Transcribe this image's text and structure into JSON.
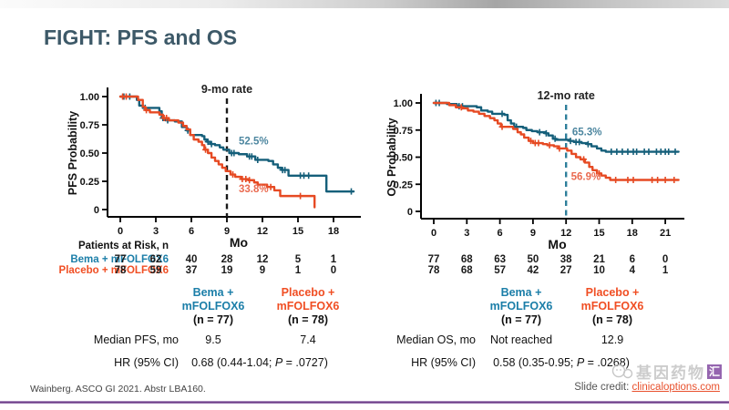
{
  "slide": {
    "title": "FIGHT: PFS and OS",
    "footer_ref": "Wainberg. ASCO GI 2021. Abstr LBA160.",
    "credit_label": "Slide credit: ",
    "credit_link": "clinicaloptions.com",
    "watermark_text": "基因药物",
    "watermark_badge": "汇"
  },
  "colors": {
    "teal_curve": "#155f7a",
    "orange_curve": "#e64a23",
    "teal_text": "#1b7ea8",
    "orange_text": "#f04e23",
    "teal_label": "#4e87a0",
    "orange_label": "#ea6a50",
    "title": "#3d5968",
    "purple_line": "#5c2a7a"
  },
  "risk": {
    "header": "Patients at Risk, n",
    "row_labels": [
      "Bema + mFOLFOX6",
      "Placebo + mFOLFOX6"
    ],
    "left_values": [
      [
        77,
        62,
        40,
        28,
        12,
        5,
        1
      ],
      [
        78,
        59,
        37,
        19,
        9,
        1,
        0
      ]
    ],
    "right_values": [
      [
        77,
        68,
        63,
        50,
        38,
        21,
        6,
        0
      ],
      [
        78,
        68,
        57,
        42,
        27,
        10,
        4,
        1
      ]
    ]
  },
  "summary_left": {
    "head1": [
      "Bema +",
      "mFOLFOX6",
      "(n = 77)"
    ],
    "head2": [
      "Placebo +",
      "mFOLFOX6",
      "(n = 78)"
    ],
    "row1_label": "Median PFS, mo",
    "row1_v1": "9.5",
    "row1_v2": "7.4",
    "row2_label": "HR (95% CI)",
    "hr_pre": "0.68 (0.44-1.04; ",
    "hr_p": "P",
    "hr_post": " = .0727)"
  },
  "summary_right": {
    "head1": [
      "Bema +",
      "mFOLFOX6",
      "(n = 77)"
    ],
    "head2": [
      "Placebo +",
      "mFOLFOX6",
      "(n = 78)"
    ],
    "row1_label": "Median OS, mo",
    "row1_v1": "Not reached",
    "row1_v2": "12.9",
    "row2_label": "HR (95% CI)",
    "hr_pre": "0.58 (0.35-0.95; ",
    "hr_p": "P",
    "hr_post": " = .0268)"
  },
  "chart_data": [
    {
      "id": "pfs",
      "type": "line",
      "subtype": "kaplan-meier-step",
      "title": "",
      "ylabel": "PFS Probability",
      "xlabel": "Mo",
      "xticks": [
        0,
        3,
        6,
        9,
        12,
        15,
        18
      ],
      "yticks": [
        {
          "v": 1.0,
          "label": "1.00"
        },
        {
          "v": 0.75,
          "label": "0.75"
        },
        {
          "v": 0.5,
          "label": "0.50"
        },
        {
          "v": 0.25,
          "label": "0.25"
        },
        {
          "v": 0,
          "label": "0"
        }
      ],
      "xlim": [
        0,
        20
      ],
      "ylim": [
        0,
        1
      ],
      "grid": false,
      "vline": {
        "x": 9,
        "label": "9-mo rate",
        "color": "#1a1a1a"
      },
      "series": [
        {
          "name": "Bema + mFOLFOX6",
          "color": "#155f7a",
          "label_color": "#4e87a0",
          "rate_label": {
            "text": "52.5%",
            "x": 10.0,
            "y": 0.575
          },
          "points": [
            [
              0,
              1.0
            ],
            [
              1.4,
              0.97
            ],
            [
              1.6,
              0.92
            ],
            [
              1.9,
              0.9
            ],
            [
              3.3,
              0.87
            ],
            [
              3.5,
              0.81
            ],
            [
              3.8,
              0.79
            ],
            [
              4.6,
              0.78
            ],
            [
              5.2,
              0.73
            ],
            [
              5.6,
              0.7
            ],
            [
              5.9,
              0.66
            ],
            [
              6.9,
              0.65
            ],
            [
              7.1,
              0.62
            ],
            [
              7.3,
              0.6
            ],
            [
              7.6,
              0.58
            ],
            [
              8.0,
              0.57
            ],
            [
              8.4,
              0.55
            ],
            [
              8.7,
              0.53
            ],
            [
              9.2,
              0.5
            ],
            [
              10.0,
              0.49
            ],
            [
              10.7,
              0.47
            ],
            [
              11.4,
              0.44
            ],
            [
              12.5,
              0.43
            ],
            [
              12.9,
              0.4
            ],
            [
              13.3,
              0.37
            ],
            [
              13.6,
              0.35
            ],
            [
              14.2,
              0.3
            ],
            [
              17.4,
              0.16
            ],
            [
              19.7,
              0.16
            ]
          ],
          "censor_x": [
            0.3,
            0.8,
            2.1,
            3.6,
            4.0,
            5.7,
            7.4,
            7.7,
            9.4,
            9.6,
            10.9,
            11.1,
            11.6,
            13.7,
            13.9,
            15.2,
            15.5,
            15.9,
            19.5
          ]
        },
        {
          "name": "Placebo + mFOLFOX6",
          "color": "#e64a23",
          "label_color": "#ea6a50",
          "rate_label": {
            "text": "33.8%",
            "x": 10.0,
            "y": 0.155
          },
          "points": [
            [
              0,
              1.0
            ],
            [
              1.5,
              0.97
            ],
            [
              1.9,
              0.91
            ],
            [
              2.1,
              0.88
            ],
            [
              2.5,
              0.86
            ],
            [
              3.3,
              0.84
            ],
            [
              3.6,
              0.81
            ],
            [
              4.1,
              0.79
            ],
            [
              4.9,
              0.77
            ],
            [
              5.3,
              0.74
            ],
            [
              5.6,
              0.71
            ],
            [
              5.9,
              0.66
            ],
            [
              6.2,
              0.62
            ],
            [
              6.6,
              0.6
            ],
            [
              6.9,
              0.57
            ],
            [
              7.1,
              0.53
            ],
            [
              7.4,
              0.5
            ],
            [
              7.7,
              0.46
            ],
            [
              8.0,
              0.43
            ],
            [
              8.3,
              0.4
            ],
            [
              8.6,
              0.37
            ],
            [
              8.9,
              0.34
            ],
            [
              9.3,
              0.31
            ],
            [
              9.7,
              0.29
            ],
            [
              10.2,
              0.27
            ],
            [
              10.8,
              0.26
            ],
            [
              11.3,
              0.24
            ],
            [
              11.6,
              0.22
            ],
            [
              12.4,
              0.2
            ],
            [
              13.0,
              0.17
            ],
            [
              13.5,
              0.12
            ],
            [
              16.4,
              0.02
            ]
          ],
          "censor_x": [
            0.2,
            0.5,
            2.2,
            3.7,
            3.9,
            7.2,
            9.5,
            10.3,
            10.6,
            10.9,
            12.7,
            15.2
          ]
        }
      ]
    },
    {
      "id": "os",
      "type": "line",
      "subtype": "kaplan-meier-step",
      "title": "",
      "ylabel": "OS Probability",
      "xlabel": "Mo",
      "xticks": [
        0,
        3,
        6,
        9,
        12,
        15,
        18,
        21
      ],
      "yticks": [
        {
          "v": 1.0,
          "label": "1.00"
        },
        {
          "v": 0.75,
          "label": "0.75"
        },
        {
          "v": 0.5,
          "label": "0.50"
        },
        {
          "v": 0.25,
          "label": "0.25"
        },
        {
          "v": 0,
          "label": "0"
        }
      ],
      "xlim": [
        0,
        22.4
      ],
      "ylim": [
        0,
        1
      ],
      "grid": false,
      "vline": {
        "x": 12,
        "label": "12-mo rate",
        "color": "#2f7f9b"
      },
      "series": [
        {
          "name": "Bema + mFOLFOX6",
          "color": "#155f7a",
          "label_color": "#4e87a0",
          "rate_label": {
            "text": "65.3%",
            "x": 12.55,
            "y": 0.7
          },
          "points": [
            [
              0,
              1.0
            ],
            [
              1.2,
              0.99
            ],
            [
              2.1,
              0.97
            ],
            [
              3.9,
              0.96
            ],
            [
              4.3,
              0.93
            ],
            [
              4.9,
              0.92
            ],
            [
              5.3,
              0.9
            ],
            [
              6.4,
              0.89
            ],
            [
              6.7,
              0.84
            ],
            [
              7.0,
              0.81
            ],
            [
              7.3,
              0.78
            ],
            [
              8.1,
              0.77
            ],
            [
              8.4,
              0.75
            ],
            [
              8.9,
              0.74
            ],
            [
              9.4,
              0.73
            ],
            [
              10.1,
              0.72
            ],
            [
              10.4,
              0.7
            ],
            [
              10.8,
              0.67
            ],
            [
              11.1,
              0.66
            ],
            [
              12.3,
              0.65
            ],
            [
              12.7,
              0.64
            ],
            [
              13.4,
              0.63
            ],
            [
              13.9,
              0.62
            ],
            [
              14.3,
              0.6
            ],
            [
              14.8,
              0.58
            ],
            [
              15.2,
              0.56
            ],
            [
              15.6,
              0.55
            ],
            [
              22.2,
              0.55
            ]
          ],
          "censor_x": [
            0.2,
            0.5,
            2.3,
            2.6,
            6.2,
            7.5,
            9.6,
            10.2,
            11.0,
            12.4,
            12.9,
            13.2,
            14.0,
            16.1,
            16.6,
            17.1,
            17.6,
            18.1,
            18.4,
            19.1,
            19.5,
            20.2,
            20.6,
            21.0,
            21.3,
            21.9
          ]
        },
        {
          "name": "Placebo + mFOLFOX6",
          "color": "#e64a23",
          "label_color": "#ea6a50",
          "rate_label": {
            "text": "56.9%",
            "x": 12.45,
            "y": 0.29
          },
          "points": [
            [
              0,
              1.0
            ],
            [
              1.4,
              0.98
            ],
            [
              2.0,
              0.96
            ],
            [
              2.6,
              0.95
            ],
            [
              3.1,
              0.93
            ],
            [
              3.6,
              0.92
            ],
            [
              4.1,
              0.9
            ],
            [
              4.6,
              0.88
            ],
            [
              5.1,
              0.86
            ],
            [
              5.5,
              0.84
            ],
            [
              5.8,
              0.81
            ],
            [
              6.1,
              0.78
            ],
            [
              7.2,
              0.76
            ],
            [
              7.6,
              0.73
            ],
            [
              7.9,
              0.71
            ],
            [
              8.2,
              0.68
            ],
            [
              8.6,
              0.65
            ],
            [
              9.0,
              0.63
            ],
            [
              9.9,
              0.62
            ],
            [
              10.3,
              0.61
            ],
            [
              10.9,
              0.6
            ],
            [
              11.3,
              0.58
            ],
            [
              12.1,
              0.56
            ],
            [
              12.5,
              0.53
            ],
            [
              12.9,
              0.5
            ],
            [
              13.3,
              0.48
            ],
            [
              13.7,
              0.45
            ],
            [
              14.1,
              0.41
            ],
            [
              14.4,
              0.38
            ],
            [
              14.8,
              0.35
            ],
            [
              15.2,
              0.33
            ],
            [
              15.6,
              0.31
            ],
            [
              16.0,
              0.29
            ],
            [
              22.2,
              0.29
            ]
          ],
          "censor_x": [
            2.5,
            6.2,
            8.8,
            9.2,
            9.5,
            10.5,
            11.4,
            13.6,
            15.0,
            16.5,
            17.6,
            18.1,
            19.8,
            20.3,
            21.0,
            21.8
          ]
        }
      ]
    }
  ]
}
